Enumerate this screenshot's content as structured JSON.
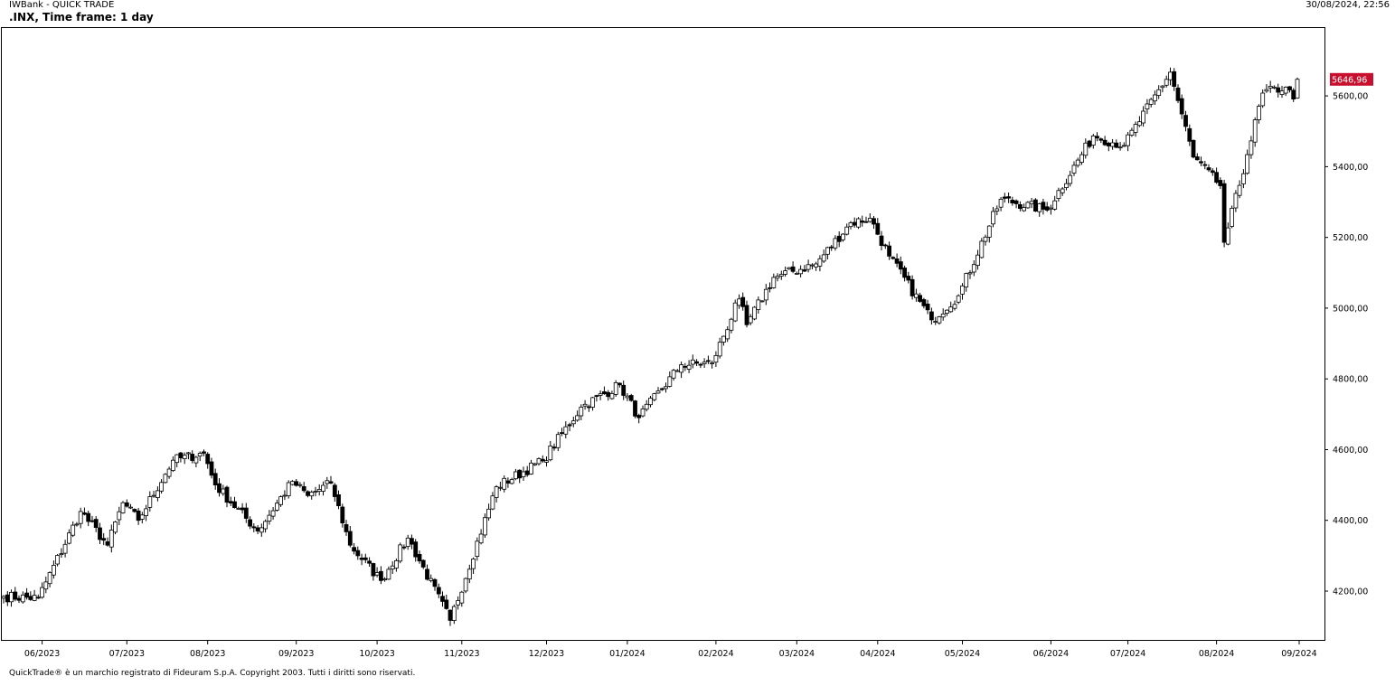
{
  "app": {
    "title": "IWBank - QUICK TRADE",
    "datetime": "30/08/2024, 22:56"
  },
  "chart_header": {
    "symbol_timeframe": ".INX, Time frame: 1 day"
  },
  "footer": {
    "copyright": "QuickTrade® è un marchio registrato di Fideuram S.p.A. Copyright 2003. Tutti i diritti sono riservati."
  },
  "colors": {
    "up_body": "#ffffff",
    "down_body": "#000000",
    "badge": "#c8102e",
    "frame": "#000000"
  },
  "chart_data": {
    "type": "candlestick",
    "title": ".INX, Time frame: 1 day",
    "ylim": [
      4062,
      5792
    ],
    "y_ticks": [
      4200,
      4400,
      4600,
      4800,
      5000,
      5200,
      5400,
      5600
    ],
    "y_tick_labels": [
      "4200,00",
      "4400,00",
      "4600,00",
      "4800,00",
      "5000,00",
      "5200,00",
      "5400,00",
      "5600,00"
    ],
    "x_ticks": [
      "06/2023",
      "07/2023",
      "08/2023",
      "09/2023",
      "10/2023",
      "11/2023",
      "12/2023",
      "01/2024",
      "02/2024",
      "03/2024",
      "04/2024",
      "05/2024",
      "06/2024",
      "07/2024",
      "08/2024",
      "09/2024"
    ],
    "last_price_label": "5646,96",
    "last_price": 5646.96,
    "anchors": [
      [
        "2023-05-18",
        4185
      ],
      [
        "2023-05-31",
        4180
      ],
      [
        "2023-06-15",
        4425
      ],
      [
        "2023-06-26",
        4330
      ],
      [
        "2023-06-30",
        4450
      ],
      [
        "2023-07-06",
        4400
      ],
      [
        "2023-07-19",
        4570
      ],
      [
        "2023-07-31",
        4590
      ],
      [
        "2023-08-03",
        4500
      ],
      [
        "2023-08-18",
        4370
      ],
      [
        "2023-08-31",
        4510
      ],
      [
        "2023-09-06",
        4470
      ],
      [
        "2023-09-14",
        4505
      ],
      [
        "2023-09-21",
        4330
      ],
      [
        "2023-10-03",
        4230
      ],
      [
        "2023-10-12",
        4350
      ],
      [
        "2023-10-27",
        4117
      ],
      [
        "2023-11-14",
        4495
      ],
      [
        "2023-11-30",
        4568
      ],
      [
        "2023-12-14",
        4720
      ],
      [
        "2023-12-28",
        4783
      ],
      [
        "2024-01-04",
        4690
      ],
      [
        "2024-01-19",
        4840
      ],
      [
        "2024-01-31",
        4845
      ],
      [
        "2024-02-09",
        5026
      ],
      [
        "2024-02-13",
        4953
      ],
      [
        "2024-02-22",
        5087
      ],
      [
        "2024-03-08",
        5125
      ],
      [
        "2024-03-21",
        5241
      ],
      [
        "2024-03-28",
        5254
      ],
      [
        "2024-04-04",
        5147
      ],
      [
        "2024-04-19",
        4967
      ],
      [
        "2024-04-30",
        5035
      ],
      [
        "2024-05-15",
        5308
      ],
      [
        "2024-05-31",
        5277
      ],
      [
        "2024-06-18",
        5487
      ],
      [
        "2024-06-28",
        5460
      ],
      [
        "2024-07-16",
        5667
      ],
      [
        "2024-07-24",
        5427
      ],
      [
        "2024-08-02",
        5346
      ],
      [
        "2024-08-05",
        5186
      ],
      [
        "2024-08-13",
        5434
      ],
      [
        "2024-08-19",
        5608
      ],
      [
        "2024-08-27",
        5625
      ],
      [
        "2024-08-29",
        5591
      ],
      [
        "2024-08-30",
        5647
      ]
    ]
  }
}
